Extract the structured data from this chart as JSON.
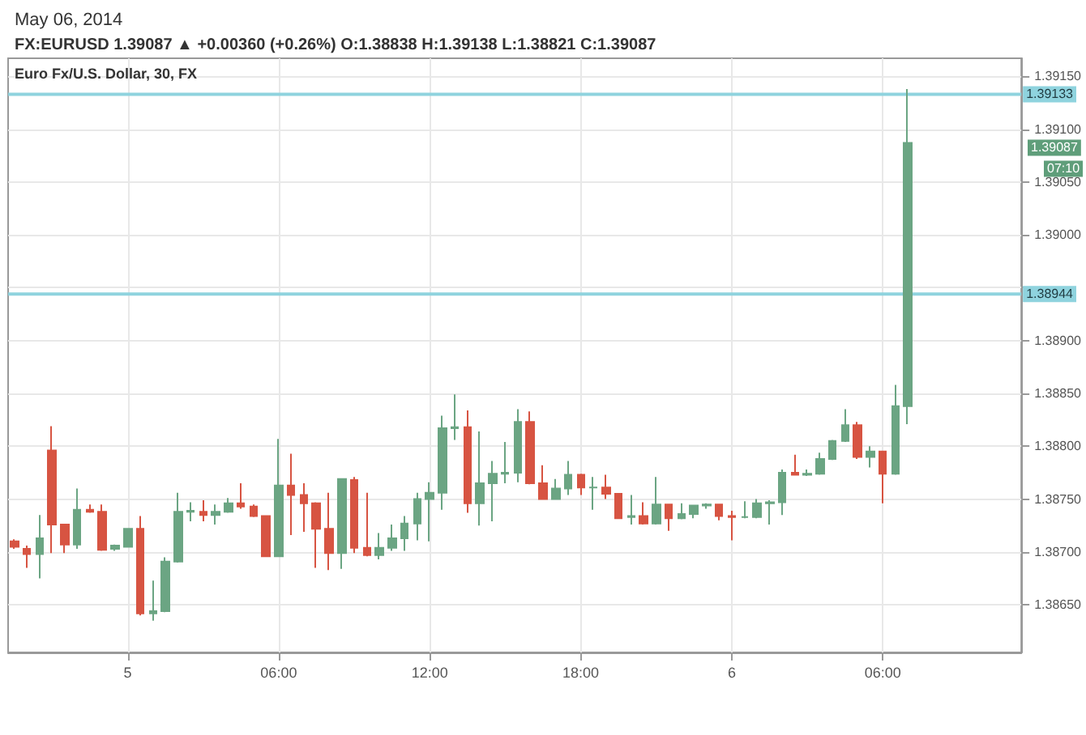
{
  "chart_data": {
    "type": "candlestick",
    "title": "May 06, 2014",
    "subtitle": "FX:EURUSD 1.39087 ▲ +0.00360 (+0.26%) O:1.38838 H:1.39138 L:1.38821 C:1.39087",
    "x": [
      "2014-05-04T19:30",
      "2014-05-04T20:00",
      "2014-05-04T20:30",
      "2014-05-04T21:00",
      "2014-05-04T21:30",
      "2014-05-04T22:00",
      "2014-05-04T22:30",
      "2014-05-04T23:00",
      "2014-05-04T23:30",
      "2014-05-05T00:00",
      "2014-05-05T00:30",
      "2014-05-05T01:00",
      "2014-05-05T01:30",
      "2014-05-05T02:00",
      "2014-05-05T02:30",
      "2014-05-05T03:00",
      "2014-05-05T03:30",
      "2014-05-05T04:00",
      "2014-05-05T04:30",
      "2014-05-05T05:00",
      "2014-05-05T05:30",
      "2014-05-05T06:00",
      "2014-05-05T06:30",
      "2014-05-05T07:00",
      "2014-05-05T07:30",
      "2014-05-05T08:00",
      "2014-05-05T08:30",
      "2014-05-05T09:00",
      "2014-05-05T09:30",
      "2014-05-05T10:00",
      "2014-05-05T10:30",
      "2014-05-05T11:00",
      "2014-05-05T11:30",
      "2014-05-05T12:00",
      "2014-05-05T12:30",
      "2014-05-05T13:00",
      "2014-05-05T13:30",
      "2014-05-05T14:00",
      "2014-05-05T14:30",
      "2014-05-05T15:00",
      "2014-05-05T15:30",
      "2014-05-05T16:00",
      "2014-05-05T16:30",
      "2014-05-05T17:00",
      "2014-05-05T17:30",
      "2014-05-05T18:00",
      "2014-05-05T18:30",
      "2014-05-05T19:00",
      "2014-05-05T19:30",
      "2014-05-05T20:00",
      "2014-05-05T20:30",
      "2014-05-05T21:00",
      "2014-05-05T21:30",
      "2014-05-05T22:00",
      "2014-05-05T22:30",
      "2014-05-05T23:00",
      "2014-05-05T23:30",
      "2014-05-06T00:00",
      "2014-05-06T00:30",
      "2014-05-06T01:00",
      "2014-05-06T01:30",
      "2014-05-06T02:00",
      "2014-05-06T02:30",
      "2014-05-06T03:00",
      "2014-05-06T03:30",
      "2014-05-06T04:00",
      "2014-05-06T04:30",
      "2014-05-06T05:00",
      "2014-05-06T05:30",
      "2014-05-06T06:00",
      "2014-05-06T06:30",
      "2014-05-06T07:00"
    ],
    "ohlc": [
      [
        1.3871,
        1.38712,
        1.38703,
        1.38705
      ],
      [
        1.38703,
        1.38706,
        1.38685,
        1.38698
      ],
      [
        1.38698,
        1.38735,
        1.38675,
        1.38713
      ],
      [
        1.38796,
        1.38819,
        1.38699,
        1.38726
      ],
      [
        1.38726,
        1.38726,
        1.38699,
        1.38707
      ],
      [
        1.38707,
        1.3876,
        1.38703,
        1.3874
      ],
      [
        1.3874,
        1.38745,
        1.38737,
        1.38738
      ],
      [
        1.38738,
        1.38745,
        1.38701,
        1.38702
      ],
      [
        1.38703,
        1.38707,
        1.38701,
        1.38706
      ],
      [
        1.38705,
        1.38722,
        1.38705,
        1.38722
      ],
      [
        1.38722,
        1.38734,
        1.3864,
        1.38642
      ],
      [
        1.38642,
        1.38673,
        1.38635,
        1.38644
      ],
      [
        1.38644,
        1.38695,
        1.38643,
        1.38691
      ],
      [
        1.38691,
        1.38756,
        1.3869,
        1.38738
      ],
      [
        1.38738,
        1.38747,
        1.38729,
        1.38739
      ],
      [
        1.38738,
        1.38749,
        1.38729,
        1.38735
      ],
      [
        1.38735,
        1.38745,
        1.38726,
        1.38738
      ],
      [
        1.38738,
        1.38751,
        1.38737,
        1.38746
      ],
      [
        1.38746,
        1.38765,
        1.38741,
        1.38743
      ],
      [
        1.38743,
        1.38745,
        1.38733,
        1.38734
      ],
      [
        1.38734,
        1.38734,
        1.38696,
        1.38696
      ],
      [
        1.38696,
        1.38807,
        1.38696,
        1.38763
      ],
      [
        1.38763,
        1.38793,
        1.38716,
        1.38754
      ],
      [
        1.38754,
        1.38765,
        1.38719,
        1.38746
      ],
      [
        1.38746,
        1.38747,
        1.38685,
        1.38722
      ],
      [
        1.38722,
        1.38756,
        1.38683,
        1.38699
      ],
      [
        1.38699,
        1.38769,
        1.38684,
        1.38769
      ],
      [
        1.38768,
        1.38771,
        1.38699,
        1.38704
      ],
      [
        1.38704,
        1.38756,
        1.38696,
        1.38697
      ],
      [
        1.38697,
        1.38718,
        1.38693,
        1.38704
      ],
      [
        1.38704,
        1.38726,
        1.38701,
        1.38713
      ],
      [
        1.38713,
        1.38734,
        1.38701,
        1.38727
      ],
      [
        1.38727,
        1.38756,
        1.38711,
        1.3875
      ],
      [
        1.3875,
        1.38766,
        1.3871,
        1.38756
      ],
      [
        1.38756,
        1.38829,
        1.3874,
        1.38817
      ],
      [
        1.38817,
        1.38849,
        1.38806,
        1.38818
      ],
      [
        1.38818,
        1.38834,
        1.38737,
        1.38746
      ],
      [
        1.38746,
        1.38814,
        1.38725,
        1.38765
      ],
      [
        1.38765,
        1.38786,
        1.38729,
        1.38774
      ],
      [
        1.38774,
        1.38804,
        1.38765,
        1.38775
      ],
      [
        1.38775,
        1.38835,
        1.38766,
        1.38823
      ],
      [
        1.38823,
        1.38833,
        1.38764,
        1.38765
      ],
      [
        1.38765,
        1.38782,
        1.3875,
        1.3875
      ],
      [
        1.3875,
        1.38769,
        1.3875,
        1.3876
      ],
      [
        1.3876,
        1.38786,
        1.38754,
        1.38773
      ],
      [
        1.38773,
        1.38774,
        1.38754,
        1.38761
      ],
      [
        1.38761,
        1.38771,
        1.3874,
        1.38761
      ],
      [
        1.38761,
        1.38773,
        1.3875,
        1.38755
      ],
      [
        1.38755,
        1.38755,
        1.38732,
        1.38732
      ],
      [
        1.38733,
        1.38754,
        1.38726,
        1.38734
      ],
      [
        1.38734,
        1.38747,
        1.38726,
        1.38727
      ],
      [
        1.38727,
        1.38771,
        1.38726,
        1.38745
      ],
      [
        1.38745,
        1.38745,
        1.3872,
        1.38732
      ],
      [
        1.38732,
        1.38746,
        1.38731,
        1.38736
      ],
      [
        1.38736,
        1.38744,
        1.38732,
        1.38744
      ],
      [
        1.38744,
        1.38746,
        1.38741,
        1.38745
      ],
      [
        1.38745,
        1.38745,
        1.3873,
        1.38734
      ],
      [
        1.38734,
        1.38739,
        1.38711,
        1.38733
      ],
      [
        1.38733,
        1.38748,
        1.38732,
        1.38733
      ],
      [
        1.38733,
        1.3875,
        1.38732,
        1.38746
      ],
      [
        1.38746,
        1.38749,
        1.38726,
        1.38747
      ],
      [
        1.38747,
        1.38778,
        1.38735,
        1.38775
      ],
      [
        1.38775,
        1.38792,
        1.38773,
        1.38773
      ],
      [
        1.38773,
        1.38778,
        1.38772,
        1.38774
      ],
      [
        1.38774,
        1.38794,
        1.38773,
        1.38788
      ],
      [
        1.38788,
        1.38806,
        1.38787,
        1.38805
      ],
      [
        1.38805,
        1.38835,
        1.38804,
        1.3882
      ],
      [
        1.3882,
        1.38823,
        1.38788,
        1.3879
      ],
      [
        1.3879,
        1.388,
        1.3878,
        1.38795
      ],
      [
        1.38795,
        1.38795,
        1.38746,
        1.38774
      ],
      [
        1.38774,
        1.38858,
        1.38773,
        1.38838
      ],
      [
        1.38838,
        1.39138,
        1.38821,
        1.39087
      ]
    ],
    "colors": [
      "#d75442",
      "#d75442",
      "#6ba583",
      "#d75442",
      "#d75442",
      "#6ba583",
      "#d75442",
      "#d75442",
      "#6ba583",
      "#6ba583",
      "#d75442",
      "#6ba583",
      "#6ba583",
      "#6ba583",
      "#6ba583",
      "#d75442",
      "#6ba583",
      "#6ba583",
      "#d75442",
      "#d75442",
      "#d75442",
      "#6ba583",
      "#d75442",
      "#d75442",
      "#d75442",
      "#d75442",
      "#6ba583",
      "#d75442",
      "#d75442",
      "#6ba583",
      "#6ba583",
      "#6ba583",
      "#6ba583",
      "#6ba583",
      "#6ba583",
      "#6ba583",
      "#d75442",
      "#6ba583",
      "#6ba583",
      "#6ba583",
      "#6ba583",
      "#d75442",
      "#d75442",
      "#6ba583",
      "#6ba583",
      "#d75442",
      "#6ba583",
      "#d75442",
      "#d75442",
      "#6ba583",
      "#d75442",
      "#6ba583",
      "#d75442",
      "#6ba583",
      "#6ba583",
      "#6ba583",
      "#d75442",
      "#d75442",
      "#6ba583",
      "#6ba583",
      "#6ba583",
      "#6ba583",
      "#d75442",
      "#6ba583",
      "#6ba583",
      "#6ba583",
      "#6ba583",
      "#d75442",
      "#6ba583",
      "#d75442",
      "#6ba583",
      "#6ba583"
    ],
    "xlim": [
      "2014-05-04T19:15",
      "2014-05-06T11:30"
    ],
    "xticks": [
      {
        "value": "2014-05-05T00:00",
        "label": "5"
      },
      {
        "value": "2014-05-05T06:00",
        "label": "06:00"
      },
      {
        "value": "2014-05-05T12:00",
        "label": "12:00"
      },
      {
        "value": "2014-05-05T18:00",
        "label": "18:00"
      },
      {
        "value": "2014-05-06T00:00",
        "label": "6"
      },
      {
        "value": "2014-05-06T06:00",
        "label": "06:00"
      }
    ],
    "ylim": [
      1.38605,
      1.39167
    ],
    "yticks": [
      {
        "value": 1.3865,
        "label": "1.38650"
      },
      {
        "value": 1.387,
        "label": "1.38700"
      },
      {
        "value": 1.3875,
        "label": "1.38750"
      },
      {
        "value": 1.388,
        "label": "1.38800"
      },
      {
        "value": 1.3885,
        "label": "1.38850"
      },
      {
        "value": 1.389,
        "label": "1.38900"
      },
      {
        "value": 1.3895,
        "label": null
      },
      {
        "value": 1.39,
        "label": "1.39000"
      },
      {
        "value": 1.3905,
        "label": "1.39050"
      },
      {
        "value": 1.391,
        "label": "1.39100"
      },
      {
        "value": 1.3915,
        "label": "1.39150"
      }
    ],
    "ref_lines": [
      {
        "axis": "y",
        "value": 1.39133,
        "label": "1.39133",
        "color": "#8fd3de"
      },
      {
        "axis": "y",
        "value": 1.38944,
        "label": "1.38944",
        "color": "#8fd3de"
      }
    ],
    "annotations": [
      "Euro Fx/U.S. Dollar, 30, FX",
      "1.39087",
      "07:10"
    ],
    "grid": true
  }
}
